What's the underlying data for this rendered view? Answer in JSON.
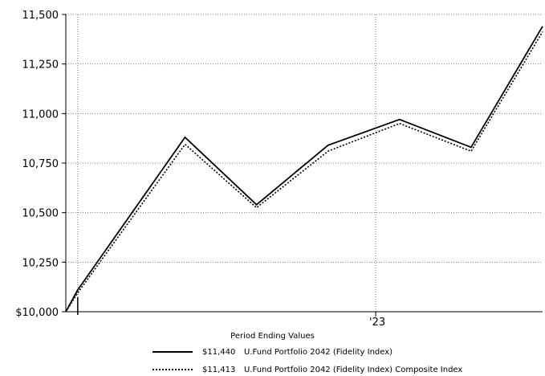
{
  "chart_data": {
    "type": "line",
    "title": "",
    "xlabel": "",
    "ylabel": "",
    "ylim": [
      10000,
      11500
    ],
    "y_ticks": [
      10000,
      10250,
      10500,
      10750,
      11000,
      11250,
      11500
    ],
    "y_tick_labels": [
      "$10,000",
      "10,250",
      "10,500",
      "10,750",
      "11,000",
      "11,250",
      "11,500"
    ],
    "x_ticks": [
      {
        "x": 6.5,
        "label": "'23"
      }
    ],
    "grid": true,
    "legend_title": "Period Ending Values",
    "legend_position": "bottom",
    "x": [
      0,
      0.25,
      2.5,
      4.0,
      5.5,
      7.0,
      8.5,
      10.0
    ],
    "series": [
      {
        "name": "U.Fund Portfolio 2042 (Fidelity Index)",
        "ending_value": "$11,440",
        "style": "solid",
        "values": [
          10000,
          10110,
          10880,
          10540,
          10840,
          10970,
          10830,
          11440
        ]
      },
      {
        "name": "U.Fund Portfolio 2042 (Fidelity Index) Composite Index",
        "ending_value": "$11,413",
        "style": "dotted",
        "values": [
          10000,
          10095,
          10845,
          10525,
          10810,
          10950,
          10810,
          11413
        ]
      }
    ]
  }
}
